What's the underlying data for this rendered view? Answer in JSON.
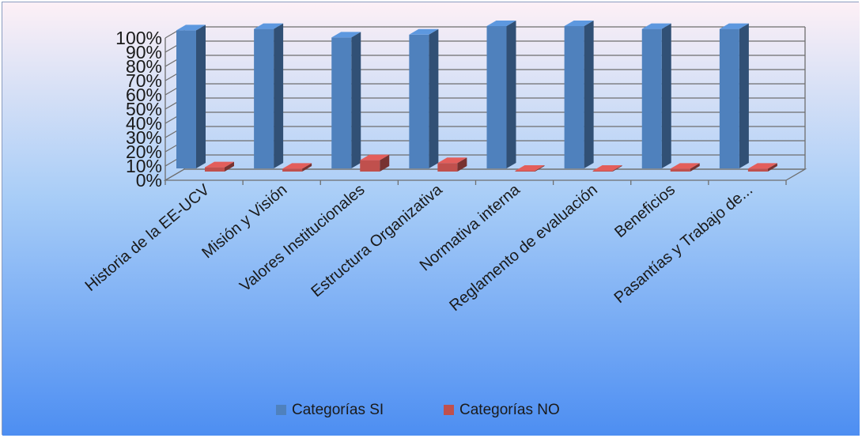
{
  "chart_data": {
    "type": "bar",
    "title": "",
    "xlabel": "",
    "ylabel": "",
    "categories": [
      "Historia de la EE-UCV",
      "Misión y Visión",
      "Valores Institucionales",
      "Estructura Organizativa",
      "Normativa interna",
      "Reglamento de evaluación",
      "Beneficios",
      "Pasantías y Trabajo de..."
    ],
    "series": [
      {
        "name": "Categorías  SI",
        "values": [
          97,
          98,
          92,
          94,
          100,
          100,
          98,
          98
        ],
        "color": "#4f81bd"
      },
      {
        "name": "Categorías  NO",
        "values": [
          3,
          2,
          8,
          6,
          0,
          0,
          2,
          2
        ],
        "color": "#c0504d"
      }
    ],
    "ylim": [
      0,
      100
    ],
    "yticks": [
      "0%",
      "10%",
      "20%",
      "30%",
      "40%",
      "50%",
      "60%",
      "70%",
      "80%",
      "90%",
      "100%"
    ],
    "grid": true,
    "legend": "bottom",
    "style": "3d-column"
  }
}
